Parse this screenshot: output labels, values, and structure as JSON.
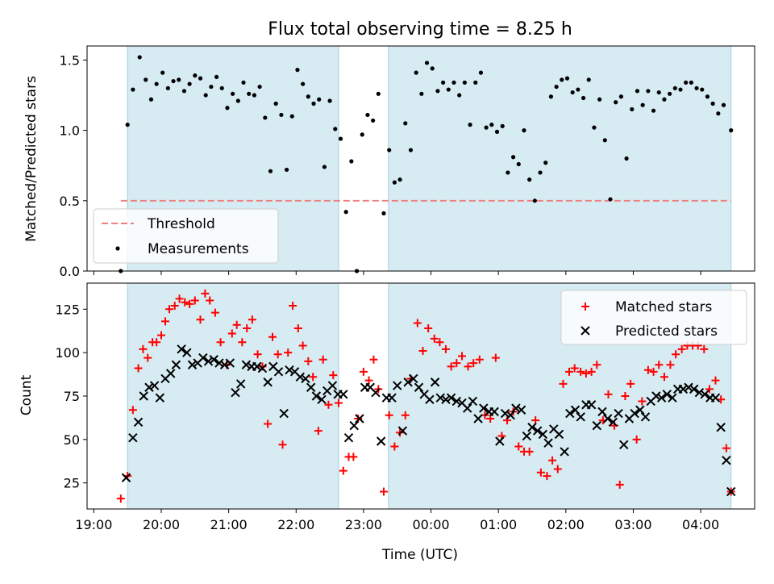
{
  "figure": {
    "title": "Flux total observing time = 8.25 h",
    "xlabel": "Time (UTC)",
    "x_ticks": [
      "19:00",
      "20:00",
      "21:00",
      "22:00",
      "23:00",
      "00:00",
      "01:00",
      "02:00",
      "03:00",
      "04:00"
    ]
  },
  "chart_data": [
    {
      "type": "scatter",
      "name": "ratio",
      "ylabel": "Matched/Predicted stars",
      "xlim": [
        18.9,
        28.8
      ],
      "ylim": [
        0,
        1.6
      ],
      "yticks": [
        0.0,
        0.5,
        1.0,
        1.5
      ],
      "ytick_labels": [
        "0.0",
        "0.5",
        "1.0",
        "1.5"
      ],
      "shaded_intervals": [
        [
          19.5,
          22.63
        ],
        [
          23.37,
          28.45
        ]
      ],
      "threshold": {
        "label": "Threshold",
        "value": 0.5,
        "color": "#f08080"
      },
      "legend": {
        "position": "lower-left",
        "entries": [
          "Threshold",
          "Measurements"
        ]
      },
      "series": [
        {
          "name": "Measurements",
          "color": "#000000",
          "x": [
            19.4,
            19.5,
            19.58,
            19.68,
            19.77,
            19.85,
            19.93,
            20.02,
            20.1,
            20.18,
            20.26,
            20.34,
            20.42,
            20.5,
            20.58,
            20.66,
            20.74,
            20.82,
            20.9,
            20.98,
            21.06,
            21.14,
            21.22,
            21.3,
            21.38,
            21.46,
            21.54,
            21.62,
            21.7,
            21.78,
            21.86,
            21.94,
            22.02,
            22.1,
            22.18,
            22.26,
            22.34,
            22.42,
            22.5,
            22.58,
            22.66,
            22.74,
            22.82,
            22.9,
            22.98,
            23.06,
            23.14,
            23.22,
            23.3,
            23.38,
            23.46,
            23.54,
            23.62,
            23.7,
            23.78,
            23.86,
            23.94,
            24.02,
            24.1,
            24.18,
            24.26,
            24.34,
            24.42,
            24.5,
            24.58,
            24.66,
            24.74,
            24.82,
            24.9,
            24.98,
            25.06,
            25.14,
            25.22,
            25.3,
            25.38,
            25.46,
            25.54,
            25.62,
            25.7,
            25.78,
            25.86,
            25.94,
            26.02,
            26.1,
            26.18,
            26.26,
            26.34,
            26.42,
            26.5,
            26.58,
            26.66,
            26.74,
            26.82,
            26.9,
            26.98,
            27.06,
            27.14,
            27.22,
            27.3,
            27.38,
            27.46,
            27.54,
            27.62,
            27.7,
            27.78,
            27.86,
            27.94,
            28.02,
            28.1,
            28.18,
            28.26,
            28.34,
            28.45
          ],
          "y": [
            0.0,
            1.04,
            1.29,
            1.52,
            1.36,
            1.22,
            1.33,
            1.41,
            1.3,
            1.35,
            1.36,
            1.28,
            1.33,
            1.39,
            1.37,
            1.25,
            1.31,
            1.38,
            1.3,
            1.16,
            1.26,
            1.21,
            1.34,
            1.26,
            1.25,
            1.31,
            1.09,
            0.71,
            1.19,
            1.11,
            0.72,
            1.1,
            1.43,
            1.33,
            1.24,
            1.19,
            1.22,
            0.74,
            1.21,
            1.01,
            0.94,
            0.42,
            0.78,
            0.0,
            0.97,
            1.11,
            1.07,
            1.26,
            0.41,
            0.86,
            0.63,
            0.65,
            1.05,
            0.86,
            1.41,
            1.26,
            1.48,
            1.44,
            1.28,
            1.34,
            1.29,
            1.34,
            1.25,
            1.34,
            1.04,
            1.34,
            1.41,
            1.02,
            1.04,
            0.99,
            1.03,
            0.7,
            0.81,
            0.76,
            1.0,
            0.65,
            0.5,
            0.7,
            0.77,
            1.24,
            1.31,
            1.36,
            1.37,
            1.27,
            1.29,
            1.23,
            1.36,
            1.02,
            1.22,
            0.93,
            0.51,
            1.2,
            1.24,
            0.8,
            1.15,
            1.28,
            1.18,
            1.28,
            1.14,
            1.27,
            1.22,
            1.26,
            1.3,
            1.29,
            1.34,
            1.34,
            1.3,
            1.29,
            1.24,
            1.19,
            1.12,
            1.18,
            1.0
          ]
        }
      ]
    },
    {
      "type": "scatter",
      "name": "counts",
      "ylabel": "Count",
      "xlim": [
        18.9,
        28.8
      ],
      "ylim": [
        10,
        140
      ],
      "yticks": [
        25,
        50,
        75,
        100,
        125
      ],
      "ytick_labels": [
        "25",
        "50",
        "75",
        "100",
        "125"
      ],
      "shaded_intervals": [
        [
          19.5,
          22.63
        ],
        [
          23.37,
          28.45
        ]
      ],
      "legend": {
        "position": "upper-right",
        "entries": [
          "Matched stars",
          "Predicted stars"
        ]
      },
      "series": [
        {
          "name": "Matched stars",
          "marker": "plus",
          "color": "#ff0000",
          "x": [
            19.4,
            19.5,
            19.58,
            19.66,
            19.73,
            19.8,
            19.87,
            19.93,
            20.0,
            20.06,
            20.12,
            20.2,
            20.27,
            20.35,
            20.42,
            20.5,
            20.58,
            20.65,
            20.72,
            20.8,
            20.88,
            20.97,
            21.05,
            21.12,
            21.2,
            21.27,
            21.35,
            21.43,
            21.5,
            21.58,
            21.65,
            21.73,
            21.8,
            21.88,
            21.95,
            22.03,
            22.1,
            22.18,
            22.25,
            22.33,
            22.4,
            22.48,
            22.55,
            22.63,
            22.7,
            22.78,
            22.85,
            22.92,
            23.0,
            23.08,
            23.15,
            23.22,
            23.3,
            23.38,
            23.46,
            23.54,
            23.62,
            23.7,
            23.8,
            23.88,
            23.96,
            24.05,
            24.13,
            24.22,
            24.3,
            24.38,
            24.46,
            24.55,
            24.63,
            24.72,
            24.8,
            24.88,
            24.96,
            25.05,
            25.13,
            25.22,
            25.3,
            25.38,
            25.46,
            25.55,
            25.63,
            25.72,
            25.8,
            25.88,
            25.96,
            26.05,
            26.13,
            26.22,
            26.3,
            26.38,
            26.46,
            26.55,
            26.63,
            26.72,
            26.8,
            26.88,
            26.96,
            27.05,
            27.13,
            27.22,
            27.3,
            27.38,
            27.46,
            27.55,
            27.63,
            27.72,
            27.8,
            27.88,
            27.96,
            28.05,
            28.13,
            28.22,
            28.3,
            28.38,
            28.45
          ],
          "y": [
            16,
            29,
            67,
            91,
            102,
            97,
            106,
            106,
            110,
            118,
            125,
            127,
            131,
            129,
            128,
            130,
            119,
            134,
            130,
            123,
            106,
            93,
            111,
            116,
            106,
            114,
            119,
            99,
            92,
            59,
            109,
            99,
            47,
            100,
            127,
            114,
            104,
            95,
            86,
            55,
            96,
            70,
            87,
            71,
            32,
            40,
            40,
            62,
            89,
            84,
            96,
            79,
            20,
            64,
            46,
            54,
            64,
            85,
            117,
            101,
            114,
            108,
            106,
            102,
            92,
            94,
            98,
            92,
            94,
            96,
            64,
            62,
            97,
            52,
            61,
            66,
            46,
            43,
            43,
            61,
            31,
            29,
            38,
            33,
            82,
            89,
            91,
            89,
            88,
            89,
            93,
            61,
            76,
            58,
            24,
            75,
            82,
            50,
            72,
            90,
            89,
            93,
            86,
            93,
            99,
            102,
            104,
            104,
            104,
            102,
            79,
            84,
            73,
            45,
            20
          ]
        },
        {
          "name": "Predicted stars",
          "marker": "x",
          "color": "#000000",
          "x": [
            19.48,
            19.58,
            19.66,
            19.74,
            19.82,
            19.9,
            19.98,
            20.06,
            20.14,
            20.22,
            20.3,
            20.38,
            20.46,
            20.54,
            20.62,
            20.7,
            20.78,
            20.86,
            20.94,
            21.02,
            21.1,
            21.18,
            21.26,
            21.34,
            21.42,
            21.5,
            21.58,
            21.66,
            21.74,
            21.82,
            21.9,
            21.98,
            22.06,
            22.14,
            22.22,
            22.3,
            22.38,
            22.46,
            22.54,
            22.62,
            22.7,
            22.78,
            22.86,
            22.94,
            23.02,
            23.1,
            23.18,
            23.26,
            23.34,
            23.42,
            23.5,
            23.58,
            23.66,
            23.74,
            23.82,
            23.9,
            23.98,
            24.06,
            24.14,
            24.22,
            24.3,
            24.38,
            24.46,
            24.54,
            24.62,
            24.7,
            24.78,
            24.86,
            24.94,
            25.02,
            25.1,
            25.18,
            25.26,
            25.34,
            25.42,
            25.5,
            25.58,
            25.66,
            25.74,
            25.82,
            25.9,
            25.98,
            26.06,
            26.14,
            26.22,
            26.3,
            26.38,
            26.46,
            26.54,
            26.62,
            26.7,
            26.78,
            26.86,
            26.94,
            27.02,
            27.1,
            27.18,
            27.26,
            27.34,
            27.42,
            27.5,
            27.58,
            27.66,
            27.74,
            27.82,
            27.9,
            27.98,
            28.06,
            28.14,
            28.22,
            28.3,
            28.38,
            28.45
          ],
          "y": [
            28,
            51,
            60,
            75,
            80,
            81,
            74,
            85,
            88,
            93,
            102,
            100,
            93,
            94,
            97,
            95,
            96,
            94,
            93,
            94,
            77,
            82,
            93,
            92,
            92,
            91,
            83,
            92,
            89,
            65,
            90,
            89,
            86,
            85,
            80,
            75,
            73,
            78,
            81,
            76,
            76,
            51,
            58,
            62,
            80,
            80,
            77,
            49,
            74,
            74,
            81,
            55,
            83,
            85,
            80,
            76,
            73,
            83,
            74,
            73,
            74,
            72,
            71,
            68,
            72,
            62,
            68,
            66,
            66,
            49,
            65,
            64,
            68,
            67,
            52,
            57,
            55,
            53,
            48,
            56,
            53,
            43,
            65,
            67,
            63,
            70,
            70,
            58,
            66,
            62,
            60,
            65,
            47,
            62,
            65,
            67,
            63,
            72,
            75,
            74,
            76,
            74,
            79,
            79,
            80,
            79,
            77,
            76,
            74,
            74,
            57,
            38,
            20
          ]
        }
      ]
    }
  ]
}
